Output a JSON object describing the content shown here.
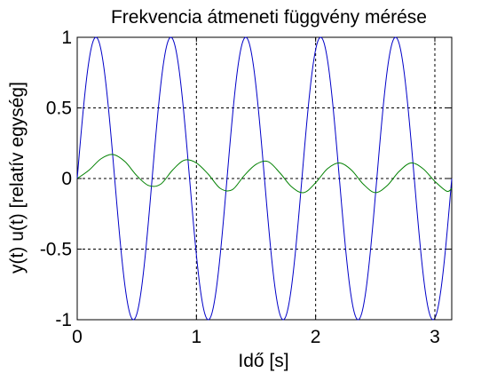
{
  "chart_data": {
    "type": "line",
    "title": "Frekvencia átmeneti függvény mérése",
    "xlabel": "Idő [s]",
    "ylabel": "y(t) u(t) [relatív egység]",
    "xlim": [
      0,
      3.1416
    ],
    "ylim": [
      -1,
      1
    ],
    "xticks": [
      0,
      1,
      2,
      3
    ],
    "xtick_labels": [
      "0",
      "1",
      "2",
      "3"
    ],
    "yticks": [
      -1,
      -0.5,
      0,
      0.5,
      1
    ],
    "ytick_labels": [
      "-1",
      "-0.5",
      "0",
      "0.5",
      "1"
    ],
    "grid": true,
    "grid_style": "dotted",
    "legend": "none",
    "colors": {
      "input": "#0000c8",
      "output": "#008000",
      "axes": "#000000",
      "background": "#ffffff"
    },
    "series": [
      {
        "role": "input",
        "formula": "y = sin(10 t)",
        "amplitude": 1,
        "angular_frequency": 10,
        "x_start": 0,
        "x_end": 3.1416
      },
      {
        "role": "output",
        "formula": "y = A sin(10 t - phi) + transient, first peak ~0.17 at t~0.30, settling to steady amplitude ~0.11",
        "steady_amplitude": 0.11,
        "angular_frequency": 10,
        "phase_lag_rad": 1.62,
        "first_peak": [
          0.3,
          0.17
        ],
        "samples": [
          [
            0.0,
            0.0
          ],
          [
            0.1,
            0.06
          ],
          [
            0.2,
            0.14
          ],
          [
            0.3,
            0.17
          ],
          [
            0.4,
            0.12
          ],
          [
            0.5,
            0.02
          ],
          [
            0.6,
            -0.05
          ],
          [
            0.7,
            -0.04
          ],
          [
            0.8,
            0.06
          ],
          [
            0.9,
            0.13
          ],
          [
            1.0,
            0.11
          ],
          [
            1.1,
            0.03
          ],
          [
            1.2,
            -0.07
          ],
          [
            1.3,
            -0.08
          ],
          [
            1.4,
            0.02
          ],
          [
            1.5,
            0.1
          ],
          [
            1.6,
            0.12
          ],
          [
            1.7,
            0.04
          ],
          [
            1.8,
            -0.06
          ],
          [
            1.9,
            -0.1
          ],
          [
            2.0,
            -0.03
          ],
          [
            2.1,
            0.07
          ],
          [
            2.2,
            0.11
          ],
          [
            2.3,
            0.06
          ],
          [
            2.4,
            -0.04
          ],
          [
            2.5,
            -0.1
          ],
          [
            2.6,
            -0.05
          ],
          [
            2.7,
            0.05
          ],
          [
            2.8,
            0.11
          ],
          [
            2.9,
            0.07
          ],
          [
            3.0,
            -0.02
          ],
          [
            3.1,
            -0.09
          ],
          [
            3.1416,
            -0.07
          ]
        ]
      }
    ]
  }
}
